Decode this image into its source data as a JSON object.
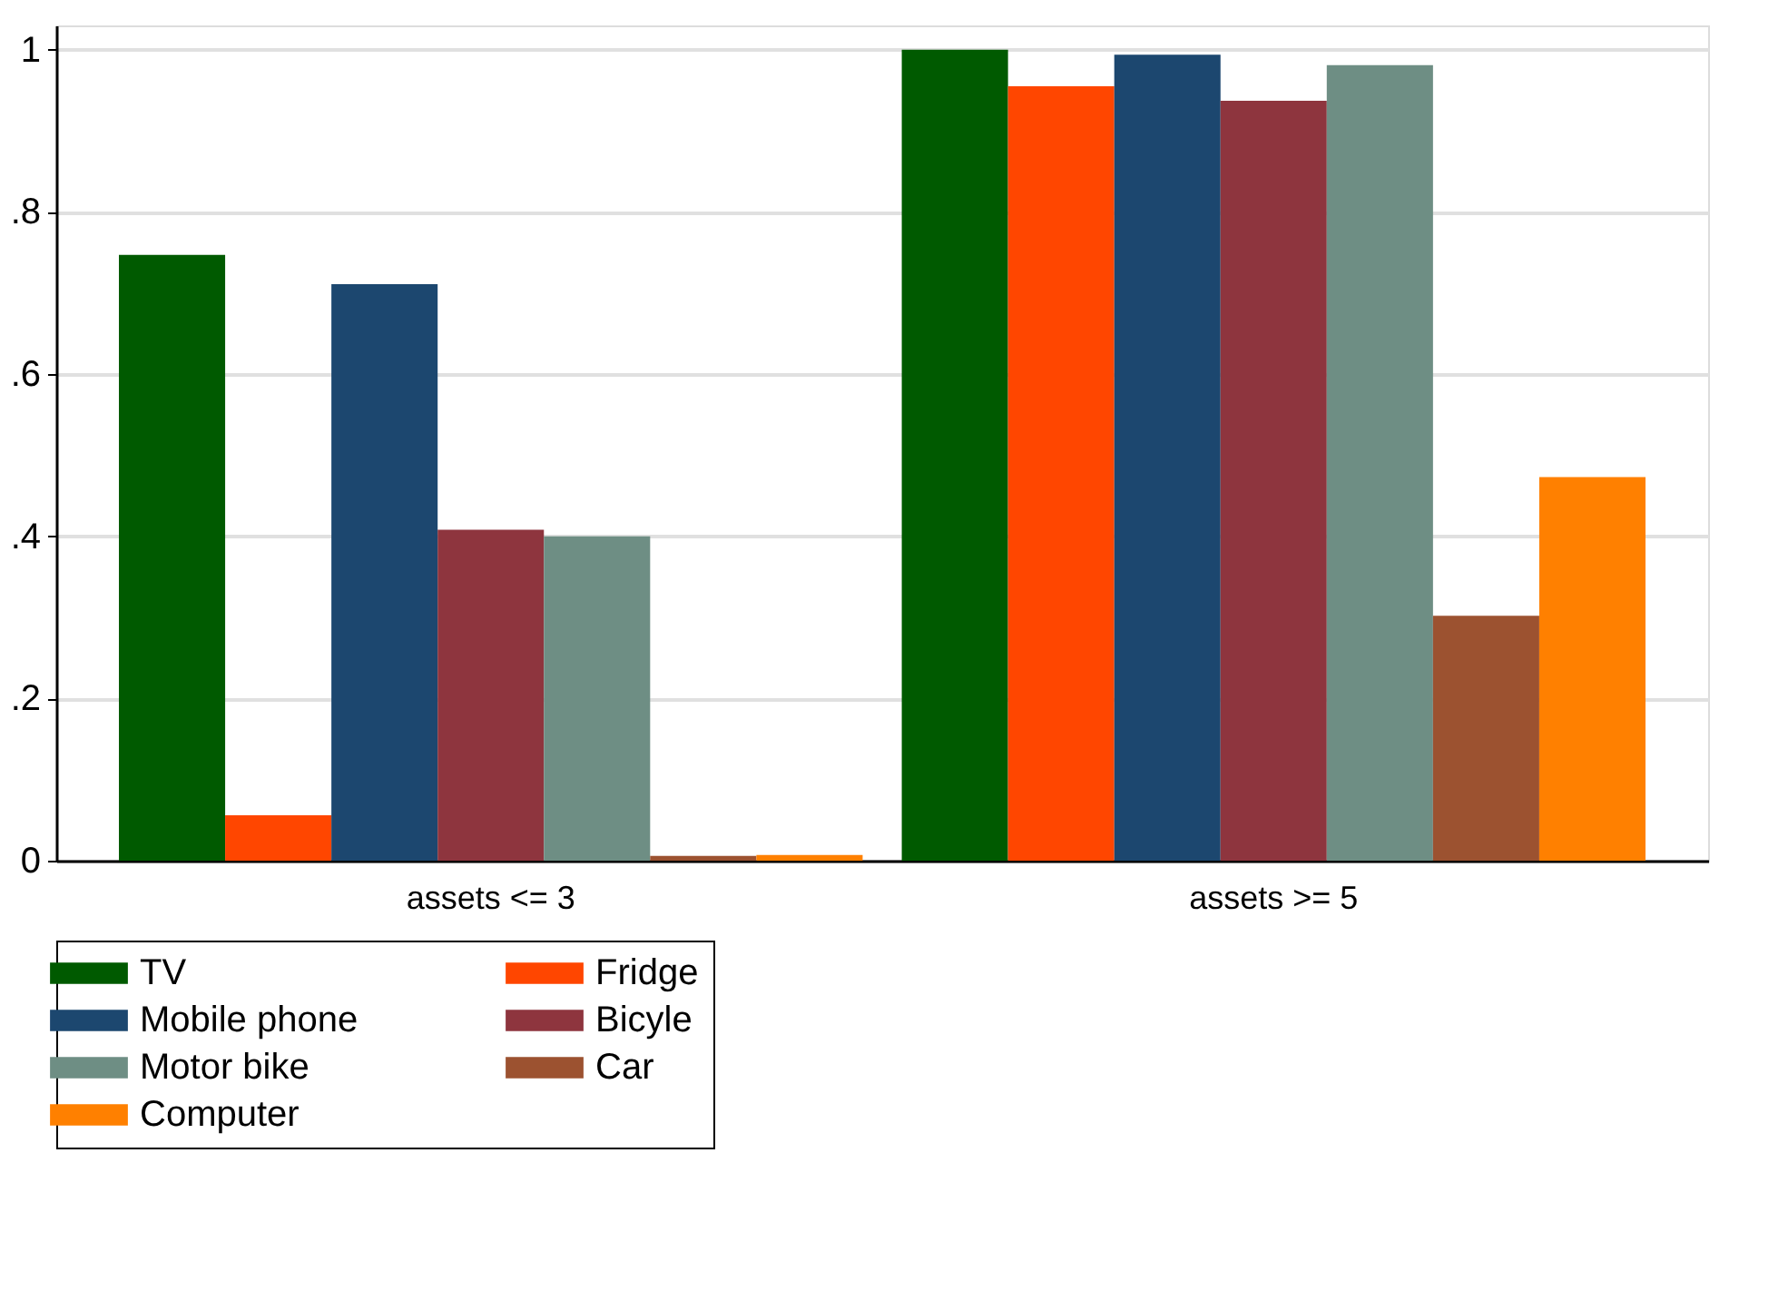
{
  "chart_data": {
    "type": "bar",
    "categories": [
      "assets <= 3",
      "assets >= 5"
    ],
    "series": [
      {
        "name": "TV",
        "color": "#005a00",
        "values": [
          0.747,
          1.0
        ]
      },
      {
        "name": "Fridge",
        "color": "#ff4600",
        "values": [
          0.056,
          0.955
        ]
      },
      {
        "name": "Mobile phone",
        "color": "#1c476f",
        "values": [
          0.711,
          0.994
        ]
      },
      {
        "name": "Bicyle",
        "color": "#8e353e",
        "values": [
          0.408,
          0.937
        ]
      },
      {
        "name": "Motor bike",
        "color": "#6e8e84",
        "values": [
          0.4,
          0.981
        ]
      },
      {
        "name": "Car",
        "color": "#9c5230",
        "values": [
          0.006,
          0.302
        ]
      },
      {
        "name": "Computer",
        "color": "#ff8000",
        "values": [
          0.007,
          0.473
        ]
      }
    ],
    "ylim": [
      0,
      1.03
    ],
    "yticks": [
      0,
      {
        "value": 0.2,
        "label": ".2"
      },
      {
        "value": 0.4,
        "label": ".4"
      },
      {
        "value": 0.6,
        "label": ".6"
      },
      {
        "value": 0.8,
        "label": ".8"
      },
      1
    ],
    "grid": "y",
    "legend": "bottom"
  }
}
